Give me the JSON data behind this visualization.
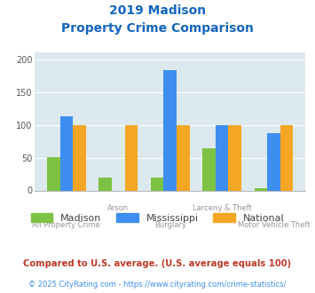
{
  "title_line1": "2019 Madison",
  "title_line2": "Property Crime Comparison",
  "categories": [
    "All Property Crime",
    "Arson",
    "Burglary",
    "Larceny & Theft",
    "Motor Vehicle Theft"
  ],
  "madison": [
    51,
    20,
    20,
    64,
    3
  ],
  "mississippi": [
    113,
    0,
    184,
    100,
    87
  ],
  "national": [
    100,
    100,
    100,
    100,
    100
  ],
  "madison_color": "#7dc242",
  "mississippi_color": "#3d8ef0",
  "national_color": "#f5a623",
  "bg_color": "#dce9ee",
  "title_color": "#1565c0",
  "xlabel_color": "#a090a0",
  "legend_label_color": "#444444",
  "footnote1": "Compared to U.S. average. (U.S. average equals 100)",
  "footnote2": "© 2025 CityRating.com - https://www.cityrating.com/crime-statistics/",
  "footnote1_color": "#c0392b",
  "footnote2_color": "#3d8ef0",
  "ylim": [
    0,
    210
  ],
  "yticks": [
    0,
    50,
    100,
    150,
    200
  ]
}
